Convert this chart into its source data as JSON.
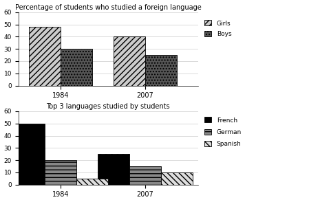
{
  "chart1": {
    "title": "Percentage of students who studied a foreign language",
    "years": [
      "1984",
      "2007"
    ],
    "girls": [
      48,
      40
    ],
    "boys": [
      30,
      25
    ],
    "ylim": [
      0,
      60
    ],
    "yticks": [
      0,
      10,
      20,
      30,
      40,
      50,
      60
    ],
    "legend_labels": [
      "Girls",
      "Boys"
    ]
  },
  "chart2": {
    "title": "Top 3 languages studied by students",
    "years": [
      "1984",
      "2007"
    ],
    "french": [
      50,
      25
    ],
    "german": [
      20,
      15
    ],
    "spanish": [
      5,
      10
    ],
    "ylim": [
      0,
      60
    ],
    "yticks": [
      0,
      10,
      20,
      30,
      40,
      50,
      60
    ],
    "legend_labels": [
      "French",
      "German",
      "Spanish"
    ]
  },
  "bar_width": 0.3,
  "group_centers": [
    0.3,
    1.1
  ],
  "background_color": "#ffffff"
}
